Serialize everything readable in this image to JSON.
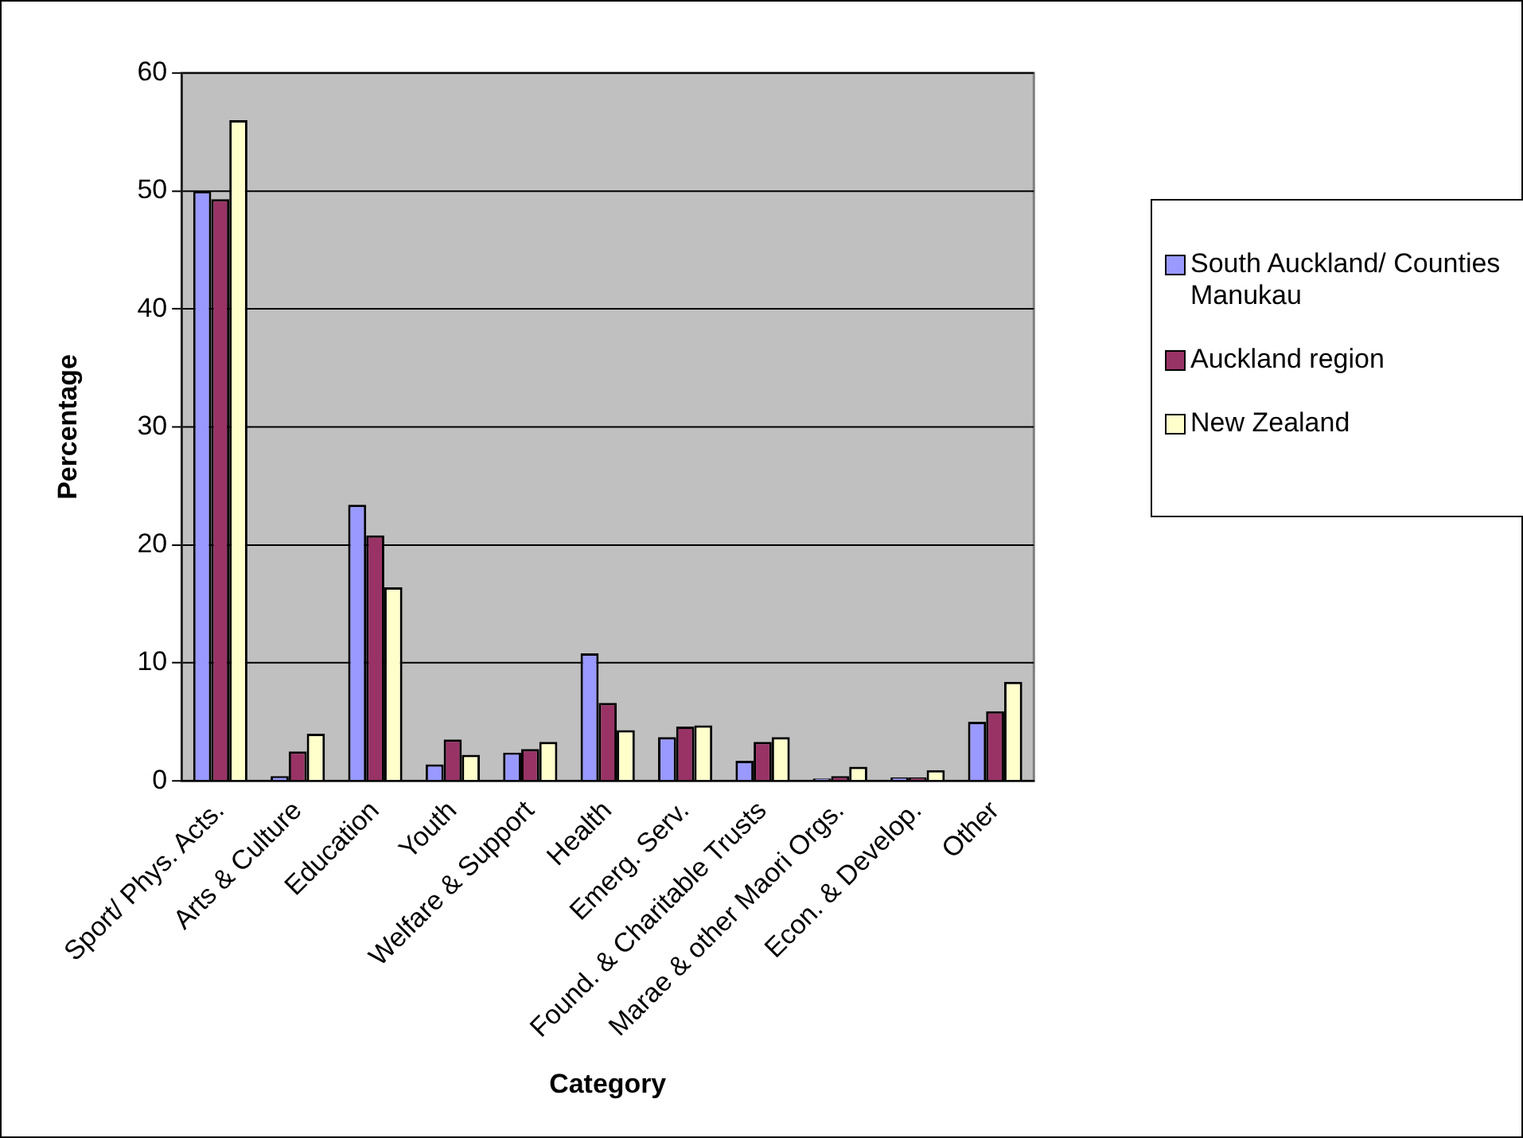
{
  "chart_data": {
    "type": "bar",
    "xlabel": "Category",
    "ylabel": "Percentage",
    "categories": [
      "Sport/ Phys. Acts.",
      "Arts & Culture",
      "Education",
      "Youth",
      "Welfare & Support",
      "Health",
      "Emerg. Serv.",
      "Found. & Charitable Trusts",
      "Marae & other Maori Orgs.",
      "Econ. & Develop.",
      "Other"
    ],
    "series": [
      {
        "name": "South Auckland/ Counties Manukau",
        "color": "#9999ff",
        "values": [
          50.0,
          0.4,
          23.4,
          1.4,
          2.4,
          10.8,
          3.7,
          1.7,
          0.2,
          0.3,
          5.0
        ]
      },
      {
        "name": "Auckland region",
        "color": "#993366",
        "values": [
          49.3,
          2.5,
          20.8,
          3.5,
          2.7,
          6.6,
          4.6,
          3.3,
          0.4,
          0.3,
          5.9
        ]
      },
      {
        "name": "New Zealand",
        "color": "#ffffcc",
        "values": [
          56.0,
          4.0,
          16.4,
          2.2,
          3.3,
          4.3,
          4.7,
          3.7,
          1.2,
          0.9,
          8.4
        ]
      }
    ],
    "ylim": [
      0,
      60
    ],
    "yticks": [
      0,
      10,
      20,
      30,
      40,
      50,
      60
    ],
    "grid": "y",
    "legend": "right"
  }
}
